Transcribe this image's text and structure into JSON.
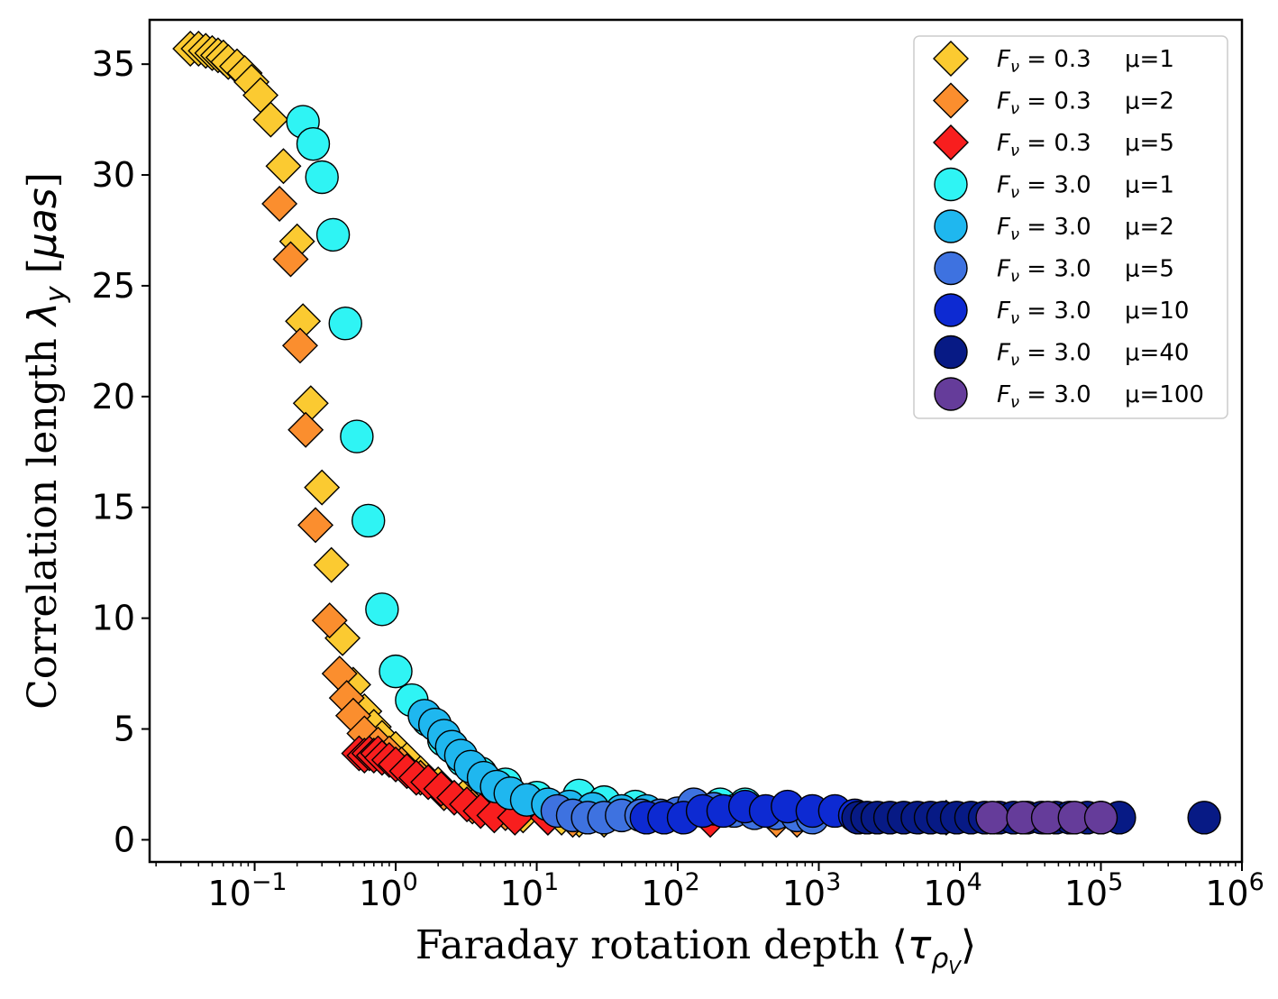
{
  "chart_data": {
    "type": "scatter",
    "xscale": "log",
    "xlim": [
      0.018,
      1000000
    ],
    "ylim": [
      -1,
      37
    ],
    "xlabel_prefix": "Faraday rotation depth ⟨",
    "xlabel_symbol": "τ",
    "xlabel_sub": "ρ",
    "xlabel_subsub": "V",
    "xlabel_suffix": "⟩",
    "ylabel_prefix": "Correlation length  ",
    "ylabel_symbol": "λ",
    "ylabel_sub": "y",
    "ylabel_unit_open": "  [",
    "ylabel_unit": "μas",
    "ylabel_unit_close": "]",
    "x_ticks": [
      {
        "value": 0.1,
        "base": "10",
        "exp": "−1"
      },
      {
        "value": 1,
        "base": "10",
        "exp": "0"
      },
      {
        "value": 10,
        "base": "10",
        "exp": "1"
      },
      {
        "value": 100,
        "base": "10",
        "exp": "2"
      },
      {
        "value": 1000,
        "base": "10",
        "exp": "3"
      },
      {
        "value": 10000,
        "base": "10",
        "exp": "4"
      },
      {
        "value": 100000,
        "base": "10",
        "exp": "5"
      },
      {
        "value": 1000000,
        "base": "10",
        "exp": "6"
      }
    ],
    "y_ticks": [
      {
        "value": 0,
        "label": "0"
      },
      {
        "value": 5,
        "label": "5"
      },
      {
        "value": 10,
        "label": "10"
      },
      {
        "value": 15,
        "label": "15"
      },
      {
        "value": 20,
        "label": "20"
      },
      {
        "value": 25,
        "label": "25"
      },
      {
        "value": 30,
        "label": "30"
      },
      {
        "value": 35,
        "label": "35"
      }
    ],
    "legend_position": "upper-right",
    "series": [
      {
        "name": "F_ν = 0.3   μ=1",
        "flux_sym": "F",
        "flux_sub": "ν",
        "flux_text": " = 0.3",
        "mu_text": "μ=1",
        "marker": "diamond",
        "color": "#fbca31",
        "points": [
          [
            0.035,
            35.7
          ],
          [
            0.04,
            35.7
          ],
          [
            0.045,
            35.6
          ],
          [
            0.05,
            35.5
          ],
          [
            0.055,
            35.4
          ],
          [
            0.06,
            35.3
          ],
          [
            0.065,
            35.1
          ],
          [
            0.075,
            34.9
          ],
          [
            0.085,
            34.6
          ],
          [
            0.095,
            34.2
          ],
          [
            0.11,
            33.6
          ],
          [
            0.13,
            32.5
          ],
          [
            0.16,
            30.4
          ],
          [
            0.2,
            27.0
          ],
          [
            0.22,
            23.4
          ],
          [
            0.25,
            19.7
          ],
          [
            0.3,
            15.9
          ],
          [
            0.35,
            12.4
          ],
          [
            0.42,
            9.1
          ],
          [
            0.5,
            7.0
          ],
          [
            0.6,
            5.8
          ],
          [
            0.7,
            5.1
          ],
          [
            0.8,
            4.6
          ],
          [
            1.0,
            4.1
          ],
          [
            1.2,
            3.6
          ],
          [
            1.5,
            3.0
          ],
          [
            2.0,
            2.5
          ],
          [
            3.0,
            1.9
          ],
          [
            5.0,
            1.4
          ],
          [
            8.0,
            1.1
          ],
          [
            15,
            1.0
          ],
          [
            20,
            0.9
          ],
          [
            30,
            0.9
          ]
        ]
      },
      {
        "name": "F_ν = 0.3   μ=2",
        "flux_sym": "F",
        "flux_sub": "ν",
        "flux_text": " = 0.3",
        "mu_text": "μ=2",
        "marker": "diamond",
        "color": "#fb8e2e",
        "points": [
          [
            0.15,
            28.7
          ],
          [
            0.18,
            26.2
          ],
          [
            0.21,
            22.3
          ],
          [
            0.23,
            18.5
          ],
          [
            0.27,
            14.2
          ],
          [
            0.34,
            9.9
          ],
          [
            0.4,
            7.5
          ],
          [
            0.45,
            6.4
          ],
          [
            0.5,
            5.6
          ],
          [
            0.6,
            4.8
          ],
          [
            0.75,
            4.3
          ],
          [
            0.9,
            3.9
          ],
          [
            1.1,
            3.4
          ],
          [
            1.5,
            2.8
          ],
          [
            2.2,
            2.1
          ],
          [
            3.5,
            1.5
          ],
          [
            6.0,
            1.2
          ],
          [
            12,
            1.0
          ],
          [
            18,
            0.9
          ],
          [
            500,
            0.9
          ],
          [
            700,
            0.9
          ]
        ]
      },
      {
        "name": "F_ν = 0.3   μ=5",
        "flux_sym": "F",
        "flux_sub": "ν",
        "flux_text": " = 0.3",
        "mu_text": "μ=5",
        "marker": "diamond",
        "color": "#f81e1e",
        "points": [
          [
            0.55,
            3.9
          ],
          [
            0.6,
            3.8
          ],
          [
            0.65,
            3.9
          ],
          [
            0.7,
            3.8
          ],
          [
            0.75,
            3.9
          ],
          [
            0.8,
            3.7
          ],
          [
            0.9,
            3.6
          ],
          [
            1.0,
            3.4
          ],
          [
            1.2,
            3.1
          ],
          [
            1.4,
            2.8
          ],
          [
            1.7,
            2.6
          ],
          [
            2.1,
            2.3
          ],
          [
            2.6,
            1.9
          ],
          [
            3.2,
            1.6
          ],
          [
            4.0,
            1.3
          ],
          [
            5.0,
            1.1
          ],
          [
            7.0,
            1.0
          ],
          [
            12,
            1.0
          ],
          [
            170,
            0.9
          ],
          [
            8000,
            1.0
          ]
        ]
      },
      {
        "name": "F_ν = 3.0   μ=1",
        "flux_sym": "F",
        "flux_sub": "ν",
        "flux_text": " = 3.0",
        "mu_text": "μ=1",
        "marker": "circle",
        "color": "#2ff4f4",
        "points": [
          [
            0.22,
            32.4
          ],
          [
            0.26,
            31.4
          ],
          [
            0.3,
            29.9
          ],
          [
            0.36,
            27.3
          ],
          [
            0.44,
            23.3
          ],
          [
            0.53,
            18.2
          ],
          [
            0.64,
            14.4
          ],
          [
            0.8,
            10.4
          ],
          [
            1.0,
            7.6
          ],
          [
            1.3,
            6.3
          ],
          [
            1.7,
            5.4
          ],
          [
            2.2,
            4.5
          ],
          [
            3.0,
            3.6
          ],
          [
            4.0,
            3.0
          ],
          [
            6.0,
            2.5
          ],
          [
            10,
            1.9
          ],
          [
            20,
            2.0
          ],
          [
            30,
            1.7
          ],
          [
            50,
            1.5
          ],
          [
            200,
            1.6
          ],
          [
            300,
            1.6
          ]
        ]
      },
      {
        "name": "F_ν = 3.0   μ=2",
        "flux_sym": "F",
        "flux_sub": "ν",
        "flux_text": " = 3.0",
        "mu_text": "μ=2",
        "marker": "circle",
        "color": "#1fb7ef",
        "points": [
          [
            1.6,
            5.6
          ],
          [
            1.9,
            5.2
          ],
          [
            2.2,
            4.7
          ],
          [
            2.5,
            4.2
          ],
          [
            2.9,
            3.8
          ],
          [
            3.4,
            3.3
          ],
          [
            4.2,
            2.8
          ],
          [
            5.2,
            2.4
          ],
          [
            6.5,
            2.1
          ],
          [
            8.5,
            1.8
          ],
          [
            12,
            1.6
          ],
          [
            17,
            1.5
          ],
          [
            25,
            1.4
          ],
          [
            40,
            1.3
          ],
          [
            60,
            1.3
          ]
        ]
      },
      {
        "name": "F_ν = 3.0   μ=5",
        "flux_sym": "F",
        "flux_sub": "ν",
        "flux_text": " = 3.0",
        "mu_text": "μ=5",
        "marker": "circle",
        "color": "#3e72e0",
        "points": [
          [
            14,
            1.3
          ],
          [
            18,
            1.1
          ],
          [
            23,
            1.0
          ],
          [
            30,
            1.0
          ],
          [
            40,
            1.1
          ],
          [
            55,
            1.1
          ],
          [
            75,
            1.1
          ],
          [
            100,
            1.2
          ],
          [
            130,
            1.6
          ],
          [
            180,
            1.4
          ],
          [
            250,
            1.3
          ],
          [
            350,
            1.2
          ],
          [
            500,
            1.2
          ],
          [
            700,
            1.1
          ],
          [
            900,
            1.0
          ]
        ]
      },
      {
        "name": "F_ν = 3.0   μ=10",
        "flux_sym": "F",
        "flux_sub": "ν",
        "flux_text": " = 3.0",
        "mu_text": "μ=10",
        "marker": "circle",
        "color": "#0d2ad2",
        "points": [
          [
            60,
            1.0
          ],
          [
            80,
            1.0
          ],
          [
            110,
            1.0
          ],
          [
            150,
            1.3
          ],
          [
            210,
            1.3
          ],
          [
            300,
            1.5
          ],
          [
            420,
            1.3
          ],
          [
            600,
            1.5
          ],
          [
            900,
            1.3
          ],
          [
            1300,
            1.3
          ],
          [
            1800,
            1.1
          ]
        ]
      },
      {
        "name": "F_ν = 3.0   μ=40",
        "flux_sym": "F",
        "flux_sub": "ν",
        "flux_text": " = 3.0",
        "mu_text": "μ=40",
        "marker": "circle",
        "color": "#071a85",
        "points": [
          [
            1900,
            1.0
          ],
          [
            2200,
            1.0
          ],
          [
            2600,
            1.0
          ],
          [
            3200,
            1.0
          ],
          [
            4000,
            1.0
          ],
          [
            5000,
            1.0
          ],
          [
            6200,
            1.0
          ],
          [
            7600,
            1.0
          ],
          [
            9500,
            1.0
          ],
          [
            12000,
            1.0
          ],
          [
            15000,
            1.0
          ],
          [
            19000,
            1.0
          ],
          [
            24000,
            1.0
          ],
          [
            30000,
            1.0
          ],
          [
            38000,
            1.0
          ],
          [
            48000,
            1.0
          ],
          [
            60000,
            1.0
          ],
          [
            80000,
            1.0
          ],
          [
            100000,
            1.0
          ],
          [
            135000,
            1.0
          ],
          [
            540000,
            1.0
          ]
        ]
      },
      {
        "name": "F_ν = 3.0   μ=100",
        "flux_sym": "F",
        "flux_sub": "ν",
        "flux_text": " = 3.0",
        "mu_text": "μ=100",
        "marker": "circle",
        "color": "#653c9a",
        "points": [
          [
            17000,
            1.0
          ],
          [
            28000,
            1.0
          ],
          [
            42000,
            1.0
          ],
          [
            65000,
            1.0
          ],
          [
            100000,
            1.0
          ]
        ]
      }
    ]
  }
}
